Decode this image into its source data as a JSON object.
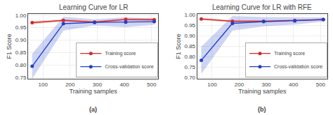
{
  "chart_data": [
    {
      "type": "line",
      "title": "Learning Curve for LR",
      "x_label": "Training samples",
      "y_label": "F1 Score",
      "annotations": [
        "(a)"
      ],
      "x": [
        60,
        175,
        290,
        405,
        510
      ],
      "series": [
        {
          "name": "Training score",
          "color": "#d62728",
          "marker": "circle",
          "values": [
            0.97,
            0.979,
            0.972,
            0.983,
            0.982
          ],
          "errors": [
            0.006,
            0.004,
            0.005,
            0.004,
            0.006
          ]
        },
        {
          "name": "Cross-validation score",
          "color": "#1f3fcc",
          "marker": "circle",
          "values": [
            0.795,
            0.966,
            0.971,
            0.972,
            0.974
          ],
          "errors": [
            0.05,
            0.028,
            0.012,
            0.02,
            0.012
          ]
        }
      ],
      "xlim": [
        45,
        525
      ],
      "xticks": [
        100,
        200,
        300,
        400,
        500
      ],
      "ylim": [
        0.745,
        1.005
      ],
      "yticks": [
        0.75,
        {
          "value": 0.8,
          "label": "0.80"
        },
        0.85,
        {
          "value": 0.9,
          "label": "0.90"
        },
        0.95,
        {
          "value": 1.0,
          "label": "1.00"
        }
      ],
      "grid": true,
      "legend": "lower right"
    },
    {
      "type": "line",
      "title": "Learning Curve for LR with RFE",
      "x_label": "Training samples",
      "y_label": "F1 Score",
      "annotations": [
        "(b)"
      ],
      "x": [
        60,
        175,
        290,
        405,
        510
      ],
      "series": [
        {
          "name": "Training score",
          "color": "#d62728",
          "marker": "circle",
          "values": [
            0.981,
            0.97,
            0.97,
            0.973,
            0.978
          ],
          "errors": [
            0.005,
            0.005,
            0.005,
            0.004,
            0.005
          ]
        },
        {
          "name": "Cross-validation score",
          "color": "#1f3fcc",
          "marker": "circle",
          "values": [
            0.783,
            0.96,
            0.968,
            0.972,
            0.978
          ],
          "errors": [
            0.065,
            0.035,
            0.022,
            0.018,
            0.01
          ]
        }
      ],
      "xlim": [
        45,
        525
      ],
      "xticks": [
        100,
        200,
        300,
        400,
        500
      ],
      "ylim": [
        0.695,
        1.005
      ],
      "yticks": [
        {
          "value": 0.7,
          "label": "0.70"
        },
        0.75,
        {
          "value": 0.8,
          "label": "0.80"
        },
        0.85,
        {
          "value": 0.9,
          "label": "0.90"
        },
        0.95,
        {
          "value": 1.0,
          "label": "1.00"
        }
      ],
      "grid": true,
      "legend": "lower right"
    }
  ]
}
